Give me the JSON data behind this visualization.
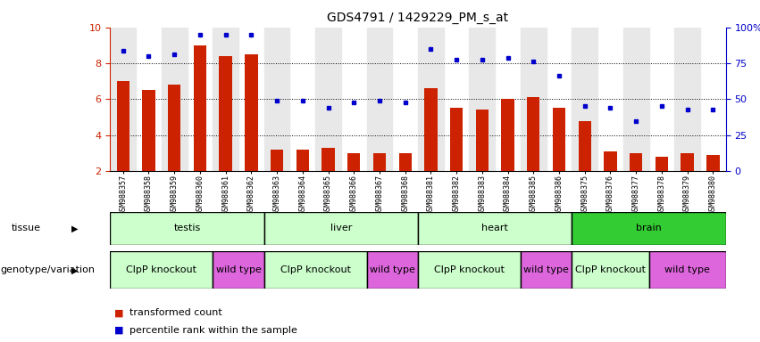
{
  "title": "GDS4791 / 1429229_PM_s_at",
  "samples": [
    "GSM988357",
    "GSM988358",
    "GSM988359",
    "GSM988360",
    "GSM988361",
    "GSM988362",
    "GSM988363",
    "GSM988364",
    "GSM988365",
    "GSM988366",
    "GSM988367",
    "GSM988368",
    "GSM988381",
    "GSM988382",
    "GSM988383",
    "GSM988384",
    "GSM988385",
    "GSM988386",
    "GSM988375",
    "GSM988376",
    "GSM988377",
    "GSM988378",
    "GSM988379",
    "GSM988380"
  ],
  "bar_values": [
    7.0,
    6.5,
    6.8,
    9.0,
    8.4,
    8.5,
    3.2,
    3.2,
    3.3,
    3.0,
    3.0,
    3.0,
    6.6,
    5.5,
    5.4,
    6.0,
    6.1,
    5.5,
    4.8,
    3.1,
    3.0,
    2.8,
    3.0,
    2.9
  ],
  "dot_values": [
    8.7,
    8.4,
    8.5,
    9.6,
    9.6,
    9.6,
    5.9,
    5.9,
    5.5,
    5.8,
    5.9,
    5.8,
    8.8,
    8.2,
    8.2,
    8.3,
    8.1,
    7.3,
    5.6,
    5.5,
    4.8,
    5.6,
    5.4,
    5.4
  ],
  "ylim_left": [
    2,
    10
  ],
  "yticks_left": [
    2,
    4,
    6,
    8,
    10
  ],
  "yticks_right": [
    0,
    25,
    50,
    75,
    100
  ],
  "bar_color": "#cc2200",
  "dot_color": "#0000cc",
  "bg_color": "#ffffff",
  "plot_bg": "#ffffff",
  "col_bg_alt": "#e8e8e8",
  "tissue_groups": [
    {
      "label": "testis",
      "start": 0,
      "end": 6,
      "color": "#ccffcc"
    },
    {
      "label": "liver",
      "start": 6,
      "end": 12,
      "color": "#ccffcc"
    },
    {
      "label": "heart",
      "start": 12,
      "end": 18,
      "color": "#ccffcc"
    },
    {
      "label": "brain",
      "start": 18,
      "end": 24,
      "color": "#33cc33"
    }
  ],
  "genotype_groups": [
    {
      "label": "ClpP knockout",
      "start": 0,
      "end": 4,
      "color": "#ccffcc"
    },
    {
      "label": "wild type",
      "start": 4,
      "end": 6,
      "color": "#dd66dd"
    },
    {
      "label": "ClpP knockout",
      "start": 6,
      "end": 10,
      "color": "#ccffcc"
    },
    {
      "label": "wild type",
      "start": 10,
      "end": 12,
      "color": "#dd66dd"
    },
    {
      "label": "ClpP knockout",
      "start": 12,
      "end": 16,
      "color": "#ccffcc"
    },
    {
      "label": "wild type",
      "start": 16,
      "end": 18,
      "color": "#dd66dd"
    },
    {
      "label": "ClpP knockout",
      "start": 18,
      "end": 21,
      "color": "#ccffcc"
    },
    {
      "label": "wild type",
      "start": 21,
      "end": 24,
      "color": "#dd66dd"
    }
  ],
  "tissue_row_label": "tissue",
  "geno_row_label": "genotype/variation",
  "legend_bar_label": "transformed count",
  "legend_dot_label": "percentile rank within the sample",
  "bar_width": 0.5,
  "dot_size": 3.5,
  "tick_fontsize": 6.0,
  "label_fontsize": 8.0,
  "row_fontsize": 8.0,
  "title_fontsize": 10
}
